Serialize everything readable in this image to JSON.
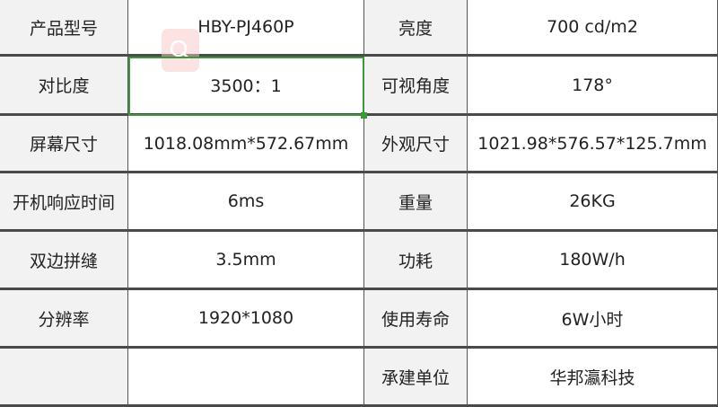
{
  "rows": [
    {
      "l1": "产品型号",
      "v1": "HBY-PJ460P",
      "l2": "亮度",
      "v2": "700 cd/m2"
    },
    {
      "l1": "对比度",
      "v1": "3500：1",
      "l2": "可视角度",
      "v2": "178°"
    },
    {
      "l1": "屏幕尺寸",
      "v1": "1018.08mm*572.67mm",
      "l2": "外观尺寸",
      "v2": "1021.98*576.57*125.7mm"
    },
    {
      "l1": "开机响应时间",
      "v1": "6ms",
      "l2": "重量",
      "v2": "26KG"
    },
    {
      "l1": "双边拼缝",
      "v1": "3.5mm",
      "l2": "功耗",
      "v2": "180W/h"
    },
    {
      "l1": "分辨率",
      "v1": "1920*1080",
      "l2": "使用寿命",
      "v2": "6W小时"
    },
    {
      "l1": "",
      "v1": "",
      "l2": "承建单位",
      "v2": "华邦瀛科技"
    }
  ],
  "colors": {
    "selection": "#3a9a3a",
    "label_bg": "#f2f2f2",
    "grid": "#4a4a4a"
  },
  "overlay_icon": "search-lens-icon"
}
